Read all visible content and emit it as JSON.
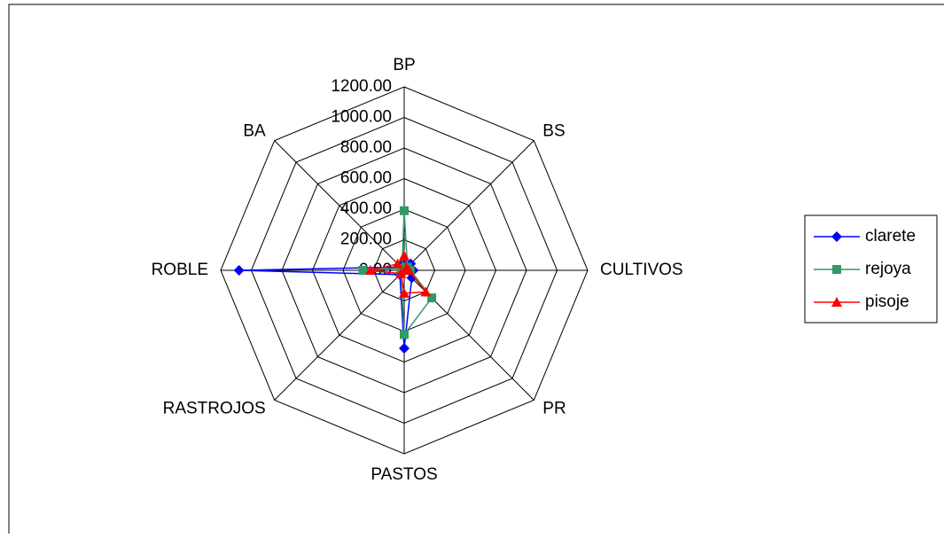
{
  "chart_data": {
    "type": "radar",
    "categories": [
      "BP",
      "BS",
      "CULTIVOS",
      "PR",
      "PASTOS",
      "RASTROJOS",
      "ROBLE",
      "BA"
    ],
    "series": [
      {
        "name": "clarete",
        "color": "#0000ff",
        "marker": "diamond",
        "values": [
          50,
          60,
          60,
          70,
          510,
          40,
          1080,
          30
        ]
      },
      {
        "name": "rejoya",
        "color": "#339966",
        "marker": "square",
        "values": [
          390,
          30,
          40,
          255,
          420,
          30,
          270,
          20
        ]
      },
      {
        "name": "pisoje",
        "color": "#ff0000",
        "marker": "triangle",
        "values": [
          95,
          20,
          30,
          200,
          150,
          30,
          220,
          60
        ]
      }
    ],
    "ylim": [
      0,
      1200
    ],
    "yticks": [
      {
        "value": 0,
        "label": "0.00"
      },
      {
        "value": 200,
        "label": "200.00"
      },
      {
        "value": 400,
        "label": "400.00"
      },
      {
        "value": 600,
        "label": "600.00"
      },
      {
        "value": 800,
        "label": "800.00"
      },
      {
        "value": 1000,
        "label": "1000.00"
      },
      {
        "value": 1200,
        "label": "1200.00"
      }
    ],
    "grid": true,
    "legend": "right"
  }
}
